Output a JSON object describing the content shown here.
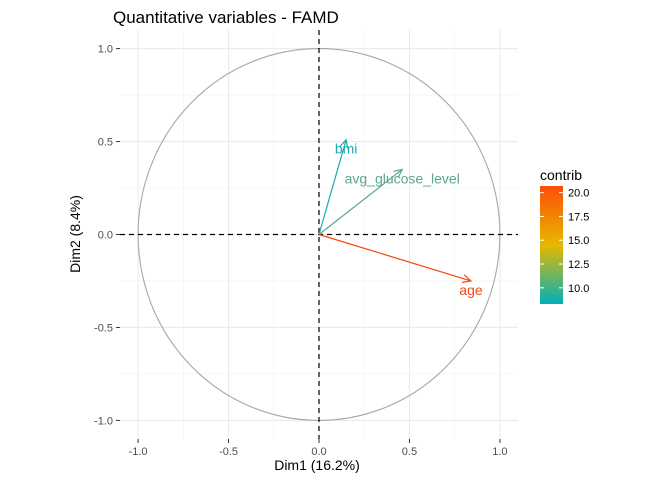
{
  "chart_data": {
    "type": "scatter",
    "title": "Quantitative variables - FAMD",
    "xlabel": "Dim1 (16.2%)",
    "ylabel": "Dim2 (8.4%)",
    "xlim": [
      -1.1,
      1.1
    ],
    "ylim": [
      -1.1,
      1.1
    ],
    "xticks": [
      -1.0,
      -0.5,
      0.0,
      0.5,
      1.0
    ],
    "yticks": [
      -1.0,
      -0.5,
      0.0,
      0.5,
      1.0
    ],
    "xtick_labels": [
      "-1.0",
      "-0.5",
      "0.0",
      "0.5",
      "1.0"
    ],
    "ytick_labels": [
      "-1.0",
      "-0.5",
      "0.0",
      "0.5",
      "1.0"
    ],
    "grid": true,
    "circle_radius": 1.0,
    "variables": [
      {
        "name": "bmi",
        "x": 0.15,
        "y": 0.51,
        "contrib": 8.5,
        "color": "#1fa7b0"
      },
      {
        "name": "avg_glucose_level",
        "x": 0.46,
        "y": 0.35,
        "contrib": 11.0,
        "color": "#5aa58f"
      },
      {
        "name": "age",
        "x": 0.84,
        "y": -0.25,
        "contrib": 20.5,
        "color": "#f6470e"
      }
    ],
    "legend": {
      "title": "contrib",
      "placement": "right",
      "ticks": [
        10.0,
        12.5,
        15.0,
        17.5,
        20.0
      ],
      "tick_labels": [
        "10.0",
        "12.5",
        "15.0",
        "17.5",
        "20.0"
      ],
      "range": [
        8.3,
        20.7
      ],
      "colors": [
        "#00afbb",
        "#e7b800",
        "#fc4e07"
      ]
    }
  }
}
